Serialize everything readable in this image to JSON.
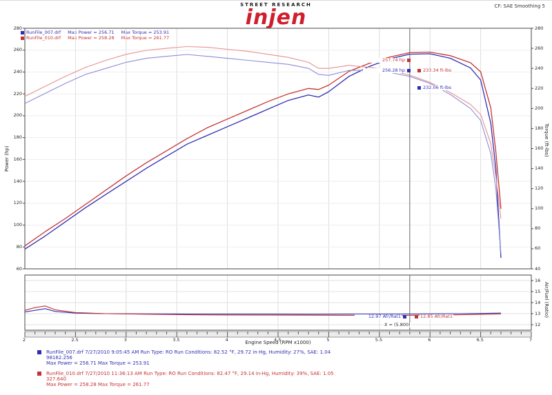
{
  "header": {
    "brand_tagline": "STREET RESEARCH",
    "brand_name": "injen",
    "corner_info": "CF: SAE    Smoothing 5"
  },
  "colors": {
    "run1": "#2e2eb4",
    "run2": "#c63232",
    "run1_torque": "#8c8cd8",
    "run2_torque": "#e89090",
    "cursor": "#666666"
  },
  "legend": {
    "rows": [
      {
        "file": "RunFile_007.drf",
        "power": "Max Power = 256.71",
        "torque": "Max Torque = 253.91",
        "color": "#2e2eb4"
      },
      {
        "file": "RunFile_010.drf",
        "power": "Max Power = 258.28",
        "torque": "Max Torque = 261.77",
        "color": "#c63232"
      }
    ]
  },
  "callouts": {
    "power_run2": "257.74 hp",
    "power_run1": "256.28 hp",
    "torque_run2": "233.34 ft-lbs",
    "torque_run1": "232.06 ft-lbs",
    "afr_run1": "12.97 Afr/Rat1",
    "afr_run2": "12.85 Afr/Rat1",
    "cursor_readout": "X = (5.800)"
  },
  "summary": {
    "runs": [
      {
        "color": "#2e2eb4",
        "line1": "RunFile_007.drf  7/27/2010 9:05:45 AM  Run Type: RO  Run Conditions: 82.52 °F, 29.72 in-Hg, Humidity: 27%, SAE: 1.04",
        "line2": "98162.256",
        "line3": "Max Power = 256.71  Max Torque = 253.91"
      },
      {
        "color": "#c63232",
        "line1": "RunFile_010.drf  7/27/2010 11:36:13 AM  Run Type: RO  Run Conditions: 82.47 °F, 29.14 in-Hg, Humidity: 39%, SAE: 1.05",
        "line2": "327.640",
        "line3": "Max Power = 258.28  Max Torque = 261.77"
      }
    ]
  },
  "chart_data": [
    {
      "type": "line",
      "title": "",
      "xlabel": "Engine Speed (RPM x1000)",
      "xlim": [
        2,
        7
      ],
      "x_ticks": [
        2,
        2.5,
        3,
        3.5,
        4,
        4.5,
        5,
        5.5,
        6,
        6.5,
        7
      ],
      "cursor_x": 5.8,
      "grid": true,
      "left_axis": {
        "label": "Power (hp)",
        "lim": [
          60,
          280
        ],
        "ticks": [
          280,
          260,
          240,
          220,
          200,
          180,
          160,
          140,
          120,
          100,
          80,
          60
        ]
      },
      "right_axis": {
        "label": "Torque (ft-lbs)",
        "lim": [
          40,
          280
        ],
        "ticks": [
          280,
          260,
          240,
          220,
          200,
          180,
          160,
          140,
          120,
          100,
          80,
          60,
          40
        ]
      },
      "x": [
        2.0,
        2.2,
        2.4,
        2.6,
        2.8,
        3.0,
        3.2,
        3.4,
        3.6,
        3.8,
        4.0,
        4.2,
        4.4,
        4.6,
        4.8,
        4.9,
        5.0,
        5.2,
        5.4,
        5.6,
        5.8,
        6.0,
        6.2,
        6.4,
        6.5,
        6.6,
        6.65,
        6.7
      ],
      "series": [
        {
          "name": "run1-power",
          "unit": "hp",
          "axis": "left",
          "color": "#2e2eb4",
          "values": [
            78,
            90,
            103,
            116,
            128,
            140,
            152,
            163,
            174,
            182,
            190,
            198,
            206,
            214,
            219,
            217,
            222,
            236,
            245,
            252,
            256.3,
            256.7,
            252.6,
            243.7,
            232.7,
            193,
            152,
            70
          ]
        },
        {
          "name": "run2-power",
          "unit": "hp",
          "axis": "left",
          "color": "#c63232",
          "values": [
            81,
            94,
            106,
            119,
            132,
            145,
            157,
            168,
            179,
            189,
            197,
            205,
            213,
            220,
            225,
            224,
            228,
            240.6,
            247.9,
            253.6,
            257.7,
            258.2,
            254.9,
            248.5,
            240.2,
            207.3,
            167.2,
            115
          ]
        },
        {
          "name": "run1-torque",
          "unit": "ft-lbs",
          "axis": "right",
          "color": "#8c8cd8",
          "values": [
            205,
            215,
            225,
            234,
            240,
            246,
            250,
            252,
            253.9,
            252,
            250,
            248,
            246,
            244,
            240,
            234,
            233,
            238,
            238,
            236,
            232,
            225,
            214,
            200,
            188,
            155,
            120,
            55
          ]
        },
        {
          "name": "run2-torque",
          "unit": "ft-lbs",
          "axis": "right",
          "color": "#e89090",
          "values": [
            212,
            222,
            232,
            241,
            248,
            254,
            258,
            260,
            261.8,
            261,
            259,
            257,
            254,
            251,
            246,
            240,
            240,
            243,
            241,
            238,
            233.3,
            226,
            216,
            204,
            194,
            165,
            132,
            90
          ]
        }
      ]
    },
    {
      "type": "line",
      "title": "",
      "xlim": [
        2,
        7
      ],
      "cursor_x": 5.8,
      "grid": true,
      "right_axis": {
        "label": "Air/Fuel (Ratio)",
        "lim": [
          11.5,
          16.5
        ],
        "ticks": [
          16,
          15,
          14,
          13,
          12
        ]
      },
      "x": [
        2.0,
        2.1,
        2.2,
        2.3,
        2.5,
        2.8,
        3.2,
        3.6,
        4.0,
        4.4,
        4.8,
        5.2,
        5.6,
        5.8,
        6.0,
        6.3,
        6.5,
        6.7
      ],
      "series": [
        {
          "name": "run1-afr",
          "axis": "right",
          "color": "#2e2eb4",
          "values": [
            13.15,
            13.3,
            13.45,
            13.2,
            13.05,
            13.0,
            12.98,
            12.97,
            12.96,
            12.96,
            12.95,
            12.96,
            12.97,
            12.97,
            12.98,
            13.0,
            13.02,
            13.05
          ]
        },
        {
          "name": "run2-afr",
          "axis": "right",
          "color": "#c63232",
          "values": [
            13.3,
            13.55,
            13.7,
            13.35,
            13.1,
            13.0,
            12.95,
            12.9,
            12.88,
            12.87,
            12.86,
            12.85,
            12.85,
            12.85,
            12.87,
            12.9,
            12.93,
            12.97
          ]
        }
      ]
    }
  ]
}
